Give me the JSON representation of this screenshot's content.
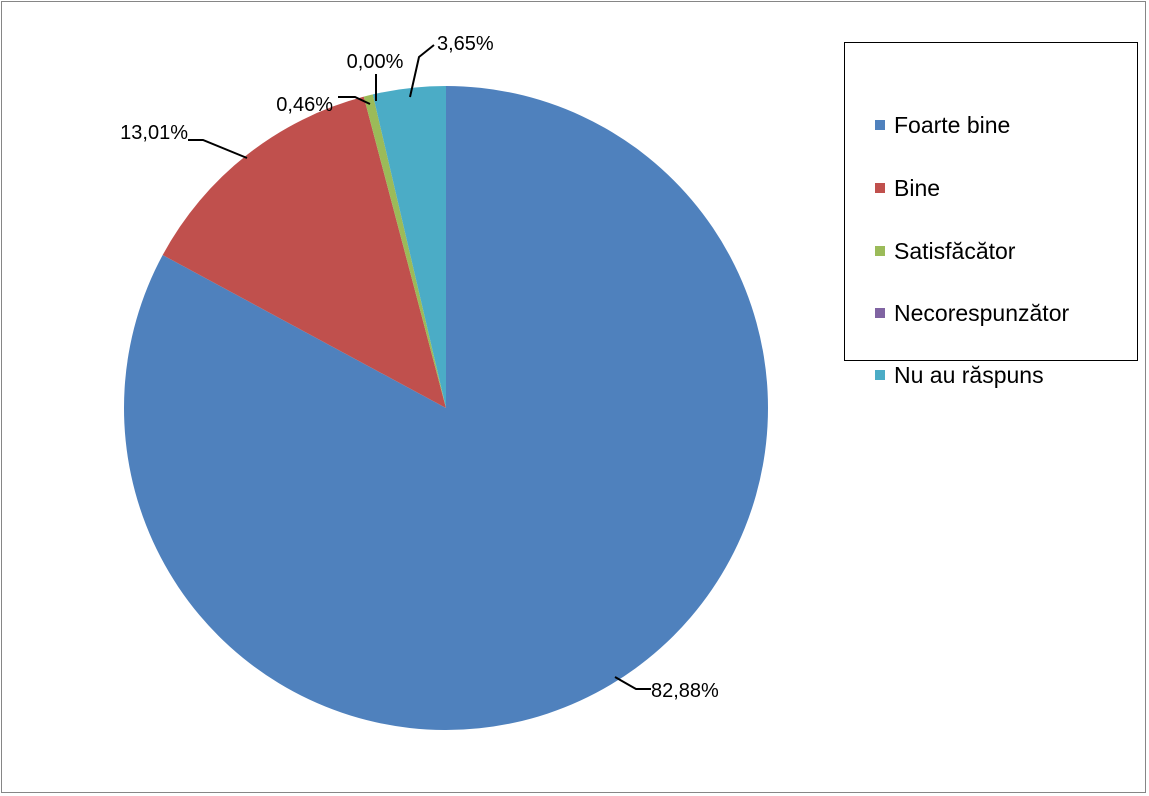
{
  "chart_data": {
    "type": "pie",
    "title": "",
    "slices": [
      {
        "label": "Foarte bine",
        "value": 82.88,
        "value_label": "82,88%",
        "color": "#4F81BD"
      },
      {
        "label": "Bine",
        "value": 13.01,
        "value_label": "13,01%",
        "color": "#C0504D"
      },
      {
        "label": "Satisfăcător",
        "value": 0.46,
        "value_label": "0,46%",
        "color": "#9BBB59"
      },
      {
        "label": "Necorespunzător",
        "value": 0.0,
        "value_label": "0,00%",
        "color": "#8064A2"
      },
      {
        "label": "Nu au răspuns",
        "value": 3.65,
        "value_label": "3,65%",
        "color": "#4BACC6"
      }
    ],
    "legend_position": "right"
  }
}
